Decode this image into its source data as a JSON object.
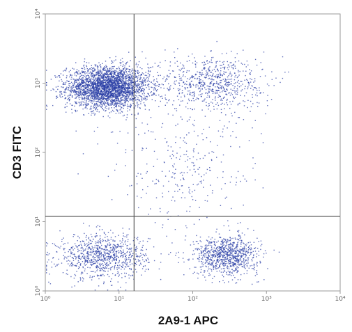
{
  "chart_data": {
    "type": "scatter",
    "title": "",
    "xlabel": "2A9-1 APC",
    "ylabel": "CD3 FITC",
    "x_scale": "log",
    "y_scale": "log",
    "xlim": [
      1,
      10000
    ],
    "ylim": [
      1,
      10000
    ],
    "x_ticks": [
      "10⁰",
      "10¹",
      "10²",
      "10³",
      "10⁴"
    ],
    "y_ticks": [
      "10⁰",
      "10¹",
      "10²",
      "10³",
      "10⁴"
    ],
    "grid": false,
    "quadrant_gates": {
      "x": 16,
      "y": 12
    },
    "point_color": "#2b3fa6",
    "populations": [
      {
        "x_center": 7,
        "y_center": 880,
        "x_spread": 0.28,
        "y_spread": 0.15,
        "count": 3000
      },
      {
        "x_center": 6,
        "y_center": 3.2,
        "x_spread": 0.3,
        "y_spread": 0.16,
        "count": 900
      },
      {
        "x_center": 280,
        "y_center": 3.3,
        "x_spread": 0.22,
        "y_spread": 0.14,
        "count": 900
      },
      {
        "x_center": 180,
        "y_center": 1050,
        "x_spread": 0.35,
        "y_spread": 0.2,
        "count": 700
      },
      {
        "x_center": 80,
        "y_center": 60,
        "x_spread": 0.5,
        "y_spread": 0.45,
        "count": 300
      }
    ]
  }
}
